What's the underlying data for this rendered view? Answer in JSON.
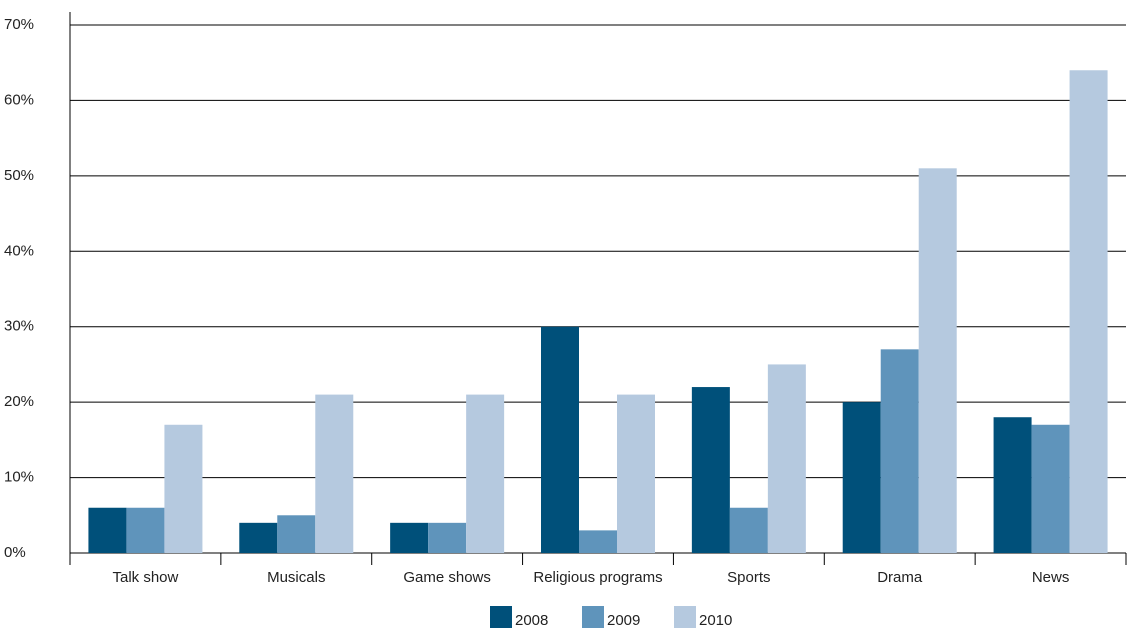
{
  "chart_data": {
    "type": "bar",
    "categories": [
      "Talk show",
      "Musicals",
      "Game shows",
      "Religious programs",
      "Sports",
      "Drama",
      "News"
    ],
    "series": [
      {
        "name": "2008",
        "color": "#00507a",
        "values": [
          6,
          4,
          4,
          30,
          22,
          20,
          18
        ]
      },
      {
        "name": "2009",
        "color": "#5f94bb",
        "values": [
          6,
          5,
          4,
          3,
          6,
          27,
          17
        ]
      },
      {
        "name": "2010",
        "color": "#b5c9df",
        "values": [
          17,
          21,
          21,
          21,
          25,
          51,
          64
        ]
      }
    ],
    "ylim": [
      0,
      70
    ],
    "yticks": [
      {
        "value": 0,
        "label": "0%"
      },
      {
        "value": 10,
        "label": "10%"
      },
      {
        "value": 20,
        "label": "20%"
      },
      {
        "value": 30,
        "label": "30%"
      },
      {
        "value": 40,
        "label": "40%"
      },
      {
        "value": 50,
        "label": "50%"
      },
      {
        "value": 60,
        "label": "60%"
      },
      {
        "value": 70,
        "label": "70%"
      }
    ],
    "grid": true,
    "legend": "bottom"
  }
}
